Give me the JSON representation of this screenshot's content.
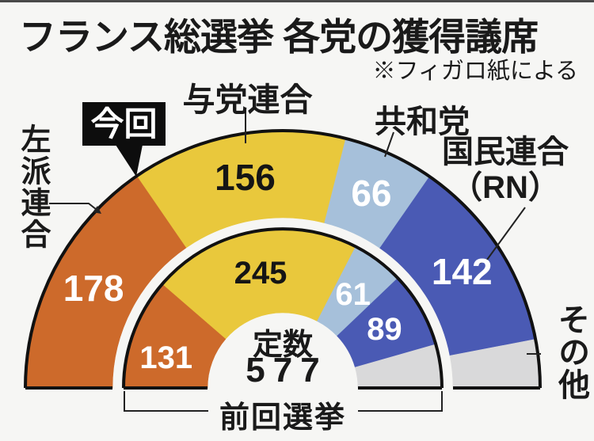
{
  "title": "フランス総選挙 各党の獲得議席",
  "source_note": "※フィガロ紙による",
  "badge_current": "今回",
  "bottom_label": "前回選挙",
  "center": {
    "label": "定数",
    "value": "577"
  },
  "party_labels": {
    "left_coalition": "左派連合",
    "ruling_coalition": "与党連合",
    "republicans": "共和党",
    "rn_line1": "国民連合",
    "rn_line2": "（RN）",
    "others": "その他"
  },
  "colors": {
    "left_coalition": "#cd6a2b",
    "ruling_coalition": "#e9c83c",
    "republicans": "#a6c0da",
    "rn": "#4a5ab4",
    "others": "#d9d9da",
    "ink": "#111111",
    "badge_bg": "#0d0d0d"
  },
  "chart_data": {
    "type": "pie",
    "subtype": "hemicycle-double-ring",
    "title": "フランス総選挙 各党の獲得議席",
    "source": "※フィガロ紙による",
    "total_seats": 577,
    "total_label": "定数577",
    "categories": [
      "左派連合",
      "与党連合",
      "共和党",
      "国民連合（RN）",
      "その他"
    ],
    "segment_colors": [
      "#cd6a2b",
      "#e9c83c",
      "#a6c0da",
      "#4a5ab4",
      "#d9d9da"
    ],
    "series": [
      {
        "name": "今回",
        "ring": "outer",
        "values": [
          178,
          156,
          66,
          142,
          35
        ],
        "show_value": [
          true,
          true,
          true,
          true,
          false
        ]
      },
      {
        "name": "前回選挙",
        "ring": "inner",
        "values": [
          131,
          245,
          61,
          89,
          51
        ],
        "show_value": [
          true,
          true,
          true,
          true,
          false
        ]
      }
    ],
    "layout_hints": {
      "orientation": "semicircle-180deg",
      "legend": "leader-lines"
    }
  }
}
